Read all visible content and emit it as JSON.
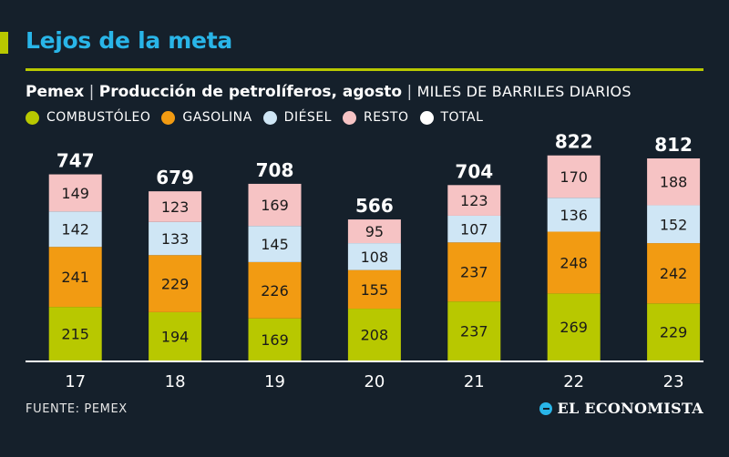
{
  "header": {
    "headline": "Lejos de la meta",
    "subtitle_company": "Pemex",
    "subtitle_separator": "|",
    "subtitle_title": "Producción de petrolíferos, agosto",
    "subtitle_units": "MILES DE BARRILES DIARIOS"
  },
  "footer": {
    "source": "FUENTE: PEMEX",
    "brand": "EL ECONOMISTA"
  },
  "colors": {
    "background": "#15202b",
    "accent": "#b8c800",
    "headline": "#29b5e8",
    "combustoleo": "#b8c800",
    "gasolina": "#f29b12",
    "diesel": "#cfe6f5",
    "resto": "#f6c3c4",
    "total": "#ffffff"
  },
  "chart_data": {
    "type": "bar",
    "stacked": true,
    "categories": [
      "17",
      "18",
      "19",
      "20",
      "21",
      "22",
      "23"
    ],
    "series": [
      {
        "name": "COMBUSTÓLEO",
        "color": "#b8c800",
        "values": [
          215,
          194,
          169,
          208,
          237,
          269,
          229
        ]
      },
      {
        "name": "GASOLINA",
        "color": "#f29b12",
        "values": [
          241,
          229,
          226,
          155,
          237,
          248,
          242
        ]
      },
      {
        "name": "DIÉSEL",
        "color": "#cfe6f5",
        "values": [
          142,
          133,
          145,
          108,
          107,
          136,
          152
        ]
      },
      {
        "name": "RESTO",
        "color": "#f6c3c4",
        "values": [
          149,
          123,
          169,
          95,
          123,
          170,
          188
        ]
      }
    ],
    "totals_name": "TOTAL",
    "totals": [
      747,
      679,
      708,
      566,
      704,
      822,
      812
    ],
    "legend_placement": "top-left",
    "grid": false,
    "ylim": [
      0,
      822
    ]
  }
}
